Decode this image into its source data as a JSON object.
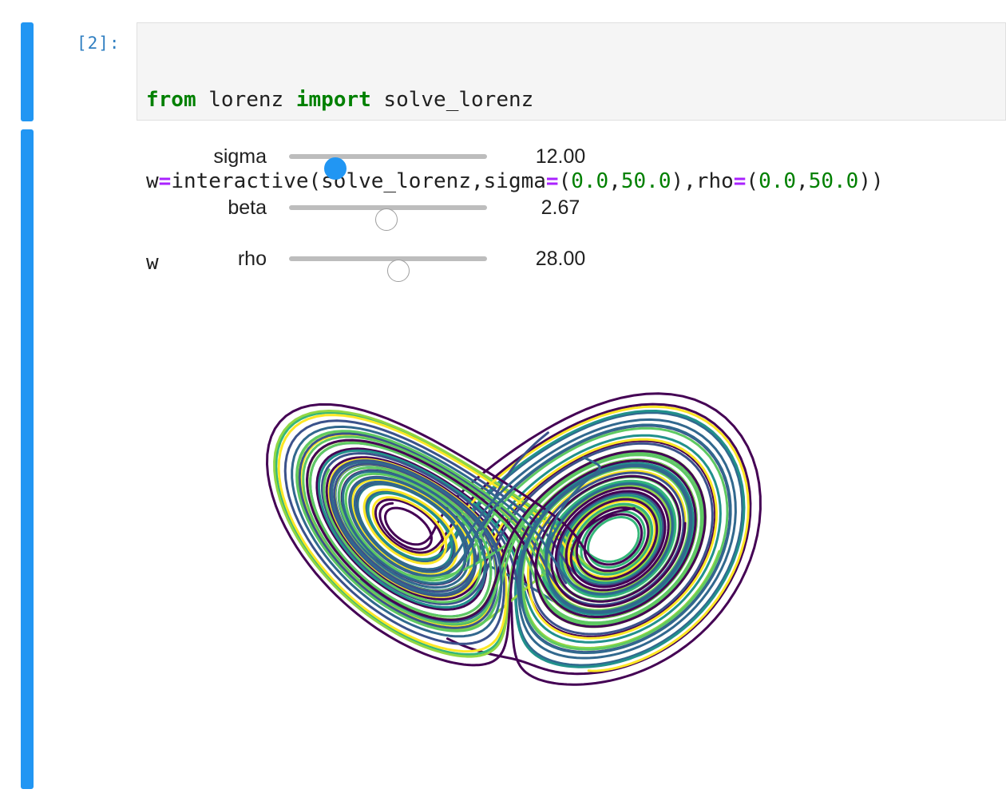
{
  "cells": {
    "input": {
      "prompt": "[2]:",
      "code": {
        "line1": {
          "kw1": "from",
          "mod": " lorenz ",
          "kw2": "import",
          "name": " solve_lorenz"
        },
        "line2": {
          "var": "w",
          "eq1": "=",
          "call": "interactive(solve_lorenz,sigma",
          "eq2": "=",
          "p1": "(",
          "n1": "0.0",
          "c1": ",",
          "n2": "50.0",
          "p2": "),rho",
          "eq3": "=",
          "p3": "(",
          "n3": "0.0",
          "c2": ",",
          "n4": "50.0",
          "p4": "))"
        },
        "line3": "w"
      }
    },
    "output": {
      "sliders": [
        {
          "label": "sigma",
          "value": "12.00",
          "fraction": 0.24,
          "active": true
        },
        {
          "label": "beta",
          "value": "2.67",
          "fraction": 0.5,
          "active": false
        },
        {
          "label": "rho",
          "value": "28.00",
          "fraction": 0.56,
          "active": false
        }
      ],
      "plot": {
        "description_colormap": [
          "#440154",
          "#31688e",
          "#35b779",
          "#21918c",
          "#90d743",
          "#fde725",
          "#3b528b",
          "#5ec962"
        ]
      }
    }
  },
  "colors": {
    "accent": "#2196f3",
    "prompt": "#307fc1",
    "keyword": "#008000",
    "operator": "#aa22ff"
  }
}
